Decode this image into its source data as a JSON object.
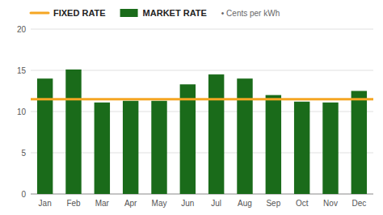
{
  "chart_data": {
    "type": "bar",
    "subtitle": "• Cents per kWh",
    "categories": [
      "Jan",
      "Feb",
      "Mar",
      "Apr",
      "May",
      "Jun",
      "Jul",
      "Aug",
      "Sep",
      "Oct",
      "Nov",
      "Dec"
    ],
    "series": [
      {
        "name": "FIXED RATE",
        "type": "hline",
        "color": "#f5a623",
        "value": 11.5
      },
      {
        "name": "MARKET RATE",
        "type": "bar",
        "color": "#1a6b1a",
        "values": [
          14.0,
          15.1,
          11.1,
          11.3,
          11.3,
          13.3,
          14.5,
          14.0,
          12.0,
          11.2,
          11.1,
          12.5
        ]
      }
    ],
    "ylim": [
      0,
      20
    ],
    "yticks": [
      0,
      5,
      10,
      15,
      20
    ],
    "grid": true,
    "legend": "top"
  }
}
